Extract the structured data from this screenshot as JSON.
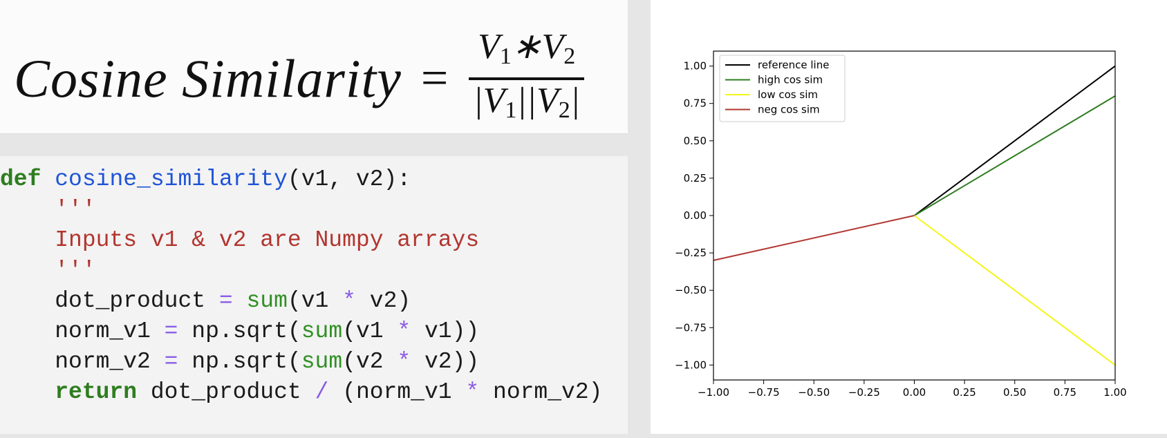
{
  "formula": {
    "lhs": "Cosine Similarity",
    "eq": "=",
    "num_a": "V",
    "num_a_sub": "1",
    "num_op": "∗",
    "num_b": "V",
    "num_b_sub": "2",
    "den_a": "|V",
    "den_a_sub": "1",
    "den_mid": "||V",
    "den_b_sub": "2",
    "den_end": "|"
  },
  "code": {
    "l1_kw": "def",
    "l1_fn": "cosine_similarity",
    "l1_rest": "(v1, v2):",
    "l2_str": "'''",
    "l3_str": "Inputs v1 & v2 are Numpy arrays",
    "l4_str": "'''",
    "l5_a": "dot_product",
    "l5_op": "=",
    "l5_bi": "sum",
    "l5_b": "(v1",
    "l5_op2": "*",
    "l5_c": "v2)",
    "l6_a": "norm_v1",
    "l6_op": "=",
    "l6_b": "np.sqrt(",
    "l6_bi": "sum",
    "l6_c": "(v1",
    "l6_op2": "*",
    "l6_d": "v1))",
    "l7_a": "norm_v2",
    "l7_op": "=",
    "l7_b": "np.sqrt(",
    "l7_bi": "sum",
    "l7_c": "(v2",
    "l7_op2": "*",
    "l7_d": "v2))",
    "l8_kw": "return",
    "l8_a": "dot_product",
    "l8_op": "/",
    "l8_b": "(norm_v1",
    "l8_op2": "*",
    "l8_c": "norm_v2)"
  },
  "chart_data": {
    "type": "line",
    "title": "",
    "xlabel": "",
    "ylabel": "",
    "xlim": [
      -1.0,
      1.0
    ],
    "ylim": [
      -1.1,
      1.1
    ],
    "xticks": [
      "−1.00",
      "−0.75",
      "−0.50",
      "−0.25",
      "0.00",
      "0.25",
      "0.50",
      "0.75",
      "1.00"
    ],
    "yticks": [
      "1.00",
      "0.75",
      "0.50",
      "0.25",
      "0.00",
      "−0.25",
      "−0.50",
      "−0.75",
      "−1.00"
    ],
    "xtick_values": [
      -1.0,
      -0.75,
      -0.5,
      -0.25,
      0.0,
      0.25,
      0.5,
      0.75,
      1.0
    ],
    "ytick_values": [
      1.0,
      0.75,
      0.5,
      0.25,
      0.0,
      -0.25,
      -0.5,
      -0.75,
      -1.0
    ],
    "legend_position": "top-left",
    "grid": false,
    "series": [
      {
        "name": "reference line",
        "color": "#000000",
        "x": [
          0,
          1
        ],
        "y": [
          0,
          1.0
        ]
      },
      {
        "name": "high cos sim",
        "color": "#2e7d1f",
        "x": [
          0,
          1
        ],
        "y": [
          0,
          0.8
        ]
      },
      {
        "name": "low cos sim",
        "color": "#f5f519",
        "x": [
          0,
          1
        ],
        "y": [
          0,
          -1.0
        ]
      },
      {
        "name": "neg cos sim",
        "color": "#b2352f",
        "x": [
          0,
          -1
        ],
        "y": [
          0,
          -0.3
        ]
      }
    ]
  }
}
